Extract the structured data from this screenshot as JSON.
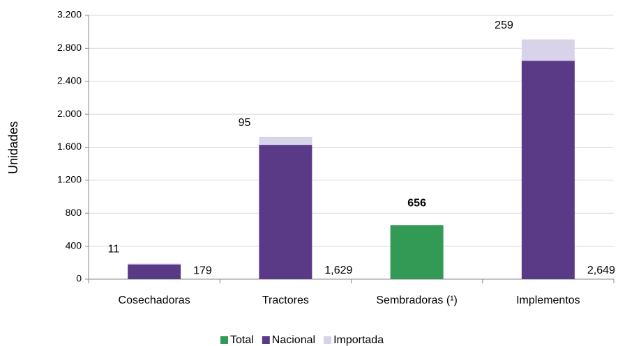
{
  "chart_data": {
    "type": "stacked-bar",
    "y_label": "Unidades",
    "categories": [
      "Cosechadoras",
      "Tractores",
      "Sembradoras (¹)",
      "Implementos"
    ],
    "series": [
      {
        "name": "Total",
        "color": "#339a56",
        "values": [
          null,
          null,
          656,
          null
        ]
      },
      {
        "name": "Nacional",
        "color": "#5a3a87",
        "values": [
          179,
          1629,
          null,
          2649
        ],
        "value_labels": [
          "179",
          "1,629",
          null,
          "2,649"
        ]
      },
      {
        "name": "Importada",
        "color": "#d9d3ea",
        "values": [
          11,
          95,
          null,
          259
        ]
      }
    ],
    "ylim": [
      0,
      3200
    ],
    "yticks": [
      0,
      400,
      800,
      {
        "value": 1200,
        "label": "1.200"
      },
      {
        "value": 1600,
        "label": "1.600"
      },
      {
        "value": 2000,
        "label": "2.000"
      },
      {
        "value": 2400,
        "label": "2.400"
      },
      {
        "value": 2800,
        "label": "2.800"
      },
      {
        "value": 3200,
        "label": "3.200"
      }
    ],
    "grid": true
  }
}
